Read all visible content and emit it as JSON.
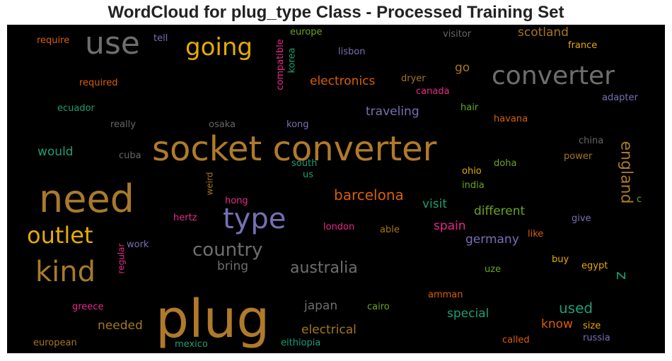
{
  "chart_data": {
    "type": "wordcloud",
    "title": "WordCloud for plug_type Class - Processed Training Set",
    "background": "#000000",
    "words": [
      {
        "text": "plug",
        "weight": 1.0,
        "color": "#b07a2a"
      },
      {
        "text": "socket converter",
        "weight": 0.9,
        "color": "#b07a2a"
      },
      {
        "text": "need",
        "weight": 0.82,
        "color": "#a87a2a"
      },
      {
        "text": "converter",
        "weight": 0.55,
        "color": "#6e6e6e"
      },
      {
        "text": "use",
        "weight": 0.55,
        "color": "#6e6e6e"
      },
      {
        "text": "type",
        "weight": 0.52,
        "color": "#7570b3"
      },
      {
        "text": "kind",
        "weight": 0.55,
        "color": "#a87a2a"
      },
      {
        "text": "going",
        "weight": 0.48,
        "color": "#e6ab02"
      },
      {
        "text": "outlet",
        "weight": 0.45,
        "color": "#e6ab02"
      },
      {
        "text": "country",
        "weight": 0.34,
        "color": "#6e6e6e"
      },
      {
        "text": "australia",
        "weight": 0.32,
        "color": "#6e6e6e"
      },
      {
        "text": "barcelona",
        "weight": 0.3,
        "color": "#d95f02"
      },
      {
        "text": "england",
        "weight": 0.3,
        "color": "#a87a2a"
      },
      {
        "text": "used",
        "weight": 0.28,
        "color": "#1b9e77"
      },
      {
        "text": "electronics",
        "weight": 0.26,
        "color": "#d95f02"
      },
      {
        "text": "traveling",
        "weight": 0.25,
        "color": "#7570b3"
      },
      {
        "text": "scotland",
        "weight": 0.24,
        "color": "#a6761d"
      },
      {
        "text": "electrical",
        "weight": 0.24,
        "color": "#a6761d"
      },
      {
        "text": "japan",
        "weight": 0.24,
        "color": "#6e6e6e"
      },
      {
        "text": "special",
        "weight": 0.24,
        "color": "#1b9e77"
      },
      {
        "text": "visit",
        "weight": 0.24,
        "color": "#1b9e77"
      },
      {
        "text": "different",
        "weight": 0.23,
        "color": "#66a61e"
      },
      {
        "text": "germany",
        "weight": 0.23,
        "color": "#7570b3"
      },
      {
        "text": "spain",
        "weight": 0.22,
        "color": "#e7298a"
      },
      {
        "text": "bring",
        "weight": 0.23,
        "color": "#6e6e6e"
      },
      {
        "text": "needed",
        "weight": 0.22,
        "color": "#a6761d"
      },
      {
        "text": "know",
        "weight": 0.22,
        "color": "#d95f02"
      },
      {
        "text": "would",
        "weight": 0.2,
        "color": "#1b9e77"
      },
      {
        "text": "go",
        "weight": 0.2,
        "color": "#a6761d"
      },
      {
        "text": "z",
        "weight": 0.3,
        "color": "#1b9e77"
      },
      {
        "text": "europe",
        "weight": 0.13,
        "color": "#66a61e"
      },
      {
        "text": "tell",
        "weight": 0.13,
        "color": "#7570b3"
      },
      {
        "text": "require",
        "weight": 0.13,
        "color": "#d95f02"
      },
      {
        "text": "visitor",
        "weight": 0.13,
        "color": "#666666"
      },
      {
        "text": "france",
        "weight": 0.13,
        "color": "#e6ab02"
      },
      {
        "text": "lisbon",
        "weight": 0.13,
        "color": "#7570b3"
      },
      {
        "text": "compatible",
        "weight": 0.12,
        "color": "#e7298a"
      },
      {
        "text": "korea",
        "weight": 0.12,
        "color": "#1b9e77"
      },
      {
        "text": "required",
        "weight": 0.13,
        "color": "#d95f02"
      },
      {
        "text": "dryer",
        "weight": 0.13,
        "color": "#a6761d"
      },
      {
        "text": "canada",
        "weight": 0.13,
        "color": "#e7298a"
      },
      {
        "text": "adapter",
        "weight": 0.13,
        "color": "#7570b3"
      },
      {
        "text": "ecuador",
        "weight": 0.13,
        "color": "#1b9e77"
      },
      {
        "text": "hair",
        "weight": 0.13,
        "color": "#66a61e"
      },
      {
        "text": "havana",
        "weight": 0.13,
        "color": "#d95f02"
      },
      {
        "text": "really",
        "weight": 0.13,
        "color": "#666666"
      },
      {
        "text": "osaka",
        "weight": 0.13,
        "color": "#666666"
      },
      {
        "text": "kong",
        "weight": 0.13,
        "color": "#7570b3"
      },
      {
        "text": "china",
        "weight": 0.13,
        "color": "#666666"
      },
      {
        "text": "cuba",
        "weight": 0.13,
        "color": "#666666"
      },
      {
        "text": "power",
        "weight": 0.13,
        "color": "#a6761d"
      },
      {
        "text": "south",
        "weight": 0.13,
        "color": "#1b9e77"
      },
      {
        "text": "doha",
        "weight": 0.13,
        "color": "#66a61e"
      },
      {
        "text": "us",
        "weight": 0.13,
        "color": "#1b9e77"
      },
      {
        "text": "ohio",
        "weight": 0.13,
        "color": "#e6ab02"
      },
      {
        "text": "weird",
        "weight": 0.11,
        "color": "#a6761d"
      },
      {
        "text": "india",
        "weight": 0.13,
        "color": "#66a61e"
      },
      {
        "text": "c",
        "weight": 0.13,
        "color": "#66a61e"
      },
      {
        "text": "hong",
        "weight": 0.13,
        "color": "#e7298a"
      },
      {
        "text": "hertz",
        "weight": 0.13,
        "color": "#e7298a"
      },
      {
        "text": "give",
        "weight": 0.13,
        "color": "#7570b3"
      },
      {
        "text": "london",
        "weight": 0.13,
        "color": "#e7298a"
      },
      {
        "text": "able",
        "weight": 0.13,
        "color": "#a6761d"
      },
      {
        "text": "like",
        "weight": 0.13,
        "color": "#d95f02"
      },
      {
        "text": "work",
        "weight": 0.13,
        "color": "#7570b3"
      },
      {
        "text": "regular",
        "weight": 0.11,
        "color": "#e7298a"
      },
      {
        "text": "buy",
        "weight": 0.13,
        "color": "#e6ab02"
      },
      {
        "text": "egypt",
        "weight": 0.13,
        "color": "#e6ab02"
      },
      {
        "text": "uze",
        "weight": 0.13,
        "color": "#66a61e"
      },
      {
        "text": "amman",
        "weight": 0.13,
        "color": "#d95f02"
      },
      {
        "text": "greece",
        "weight": 0.13,
        "color": "#e7298a"
      },
      {
        "text": "cairo",
        "weight": 0.13,
        "color": "#66a61e"
      },
      {
        "text": "size",
        "weight": 0.13,
        "color": "#e6ab02"
      },
      {
        "text": "european",
        "weight": 0.13,
        "color": "#a6761d"
      },
      {
        "text": "mexico",
        "weight": 0.13,
        "color": "#1b9e77"
      },
      {
        "text": "eithiopia",
        "weight": 0.13,
        "color": "#1b9e77"
      },
      {
        "text": "called",
        "weight": 0.13,
        "color": "#d95f02"
      },
      {
        "text": "russia",
        "weight": 0.13,
        "color": "#7570b3"
      }
    ]
  }
}
